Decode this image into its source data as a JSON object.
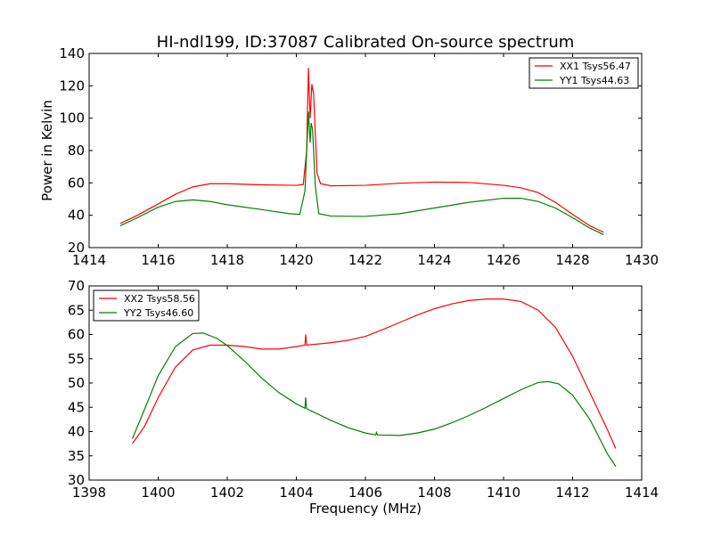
{
  "chart_data": [
    {
      "type": "line",
      "title": "HI-ndl199, ID:37087 Calibrated On-source spectrum",
      "xlabel": "",
      "ylabel": "Power in Kelvin",
      "xlim": [
        1414,
        1430
      ],
      "ylim": [
        20,
        140
      ],
      "xticks": [
        "1414",
        "1416",
        "1418",
        "1420",
        "1422",
        "1424",
        "1426",
        "1428",
        "1430"
      ],
      "yticks": [
        "20",
        "40",
        "60",
        "80",
        "100",
        "120",
        "140"
      ],
      "grid": false,
      "legend_position": "top-right",
      "series": [
        {
          "name": "XX1 Tsys56.47",
          "color": "#ff0000",
          "points": [
            [
              1414.9,
              35
            ],
            [
              1415.4,
              40
            ],
            [
              1416.0,
              47
            ],
            [
              1416.5,
              53
            ],
            [
              1417.0,
              57.5
            ],
            [
              1417.5,
              59.5
            ],
            [
              1418.0,
              59.5
            ],
            [
              1419.0,
              58.8
            ],
            [
              1420.0,
              58.5
            ],
            [
              1420.2,
              59
            ],
            [
              1420.3,
              80
            ],
            [
              1420.35,
              131
            ],
            [
              1420.4,
              100
            ],
            [
              1420.45,
              121
            ],
            [
              1420.5,
              115
            ],
            [
              1420.55,
              90
            ],
            [
              1420.6,
              66
            ],
            [
              1420.7,
              59.5
            ],
            [
              1421.0,
              58.2
            ],
            [
              1422.0,
              58.5
            ],
            [
              1423.0,
              59.8
            ],
            [
              1424.0,
              60.5
            ],
            [
              1425.0,
              60.3
            ],
            [
              1426.0,
              58.5
            ],
            [
              1426.5,
              57
            ],
            [
              1427.0,
              54
            ],
            [
              1427.5,
              48
            ],
            [
              1428.0,
              40.5
            ],
            [
              1428.5,
              33.5
            ],
            [
              1428.9,
              29.5
            ]
          ]
        },
        {
          "name": "YY1 Tsys44.63",
          "color": "#008000",
          "points": [
            [
              1414.9,
              33.5
            ],
            [
              1415.4,
              38.5
            ],
            [
              1416.0,
              45
            ],
            [
              1416.5,
              48.5
            ],
            [
              1417.0,
              49.5
            ],
            [
              1417.5,
              48.5
            ],
            [
              1418.0,
              46.5
            ],
            [
              1419.0,
              43.5
            ],
            [
              1419.8,
              41
            ],
            [
              1420.1,
              40.5
            ],
            [
              1420.25,
              55
            ],
            [
              1420.35,
              104
            ],
            [
              1420.4,
              85
            ],
            [
              1420.43,
              97
            ],
            [
              1420.47,
              93
            ],
            [
              1420.55,
              58
            ],
            [
              1420.65,
              41
            ],
            [
              1421.0,
              39.5
            ],
            [
              1422.0,
              39.3
            ],
            [
              1423.0,
              41
            ],
            [
              1424.0,
              44.5
            ],
            [
              1425.0,
              48
            ],
            [
              1426.0,
              50.5
            ],
            [
              1426.5,
              50.5
            ],
            [
              1427.0,
              48.5
            ],
            [
              1427.5,
              44.5
            ],
            [
              1428.0,
              38.5
            ],
            [
              1428.5,
              32
            ],
            [
              1428.9,
              28
            ]
          ]
        }
      ]
    },
    {
      "type": "line",
      "title": "",
      "xlabel": "Frequency (MHz)",
      "ylabel": "",
      "xlim": [
        1398,
        1414
      ],
      "ylim": [
        30,
        70
      ],
      "xticks": [
        "1398",
        "1400",
        "1402",
        "1404",
        "1406",
        "1408",
        "1410",
        "1412",
        "1414"
      ],
      "yticks": [
        "30",
        "35",
        "40",
        "45",
        "50",
        "55",
        "60",
        "65",
        "70"
      ],
      "grid": false,
      "legend_position": "top-left",
      "series": [
        {
          "name": "XX2 Tsys58.56",
          "color": "#ff0000",
          "points": [
            [
              1399.25,
              37.5
            ],
            [
              1399.6,
              41
            ],
            [
              1400.0,
              47
            ],
            [
              1400.5,
              53.3
            ],
            [
              1401.0,
              56.8
            ],
            [
              1401.5,
              57.8
            ],
            [
              1402.0,
              57.8
            ],
            [
              1402.5,
              57.5
            ],
            [
              1403.0,
              57.0
            ],
            [
              1403.5,
              57.0
            ],
            [
              1404.0,
              57.5
            ],
            [
              1404.25,
              57.8
            ],
            [
              1404.27,
              60.0
            ],
            [
              1404.3,
              57.8
            ],
            [
              1405.0,
              58.3
            ],
            [
              1405.5,
              58.8
            ],
            [
              1406.0,
              59.6
            ],
            [
              1406.5,
              61.0
            ],
            [
              1407.0,
              62.5
            ],
            [
              1407.5,
              64.0
            ],
            [
              1408.0,
              65.3
            ],
            [
              1408.5,
              66.3
            ],
            [
              1409.0,
              67.0
            ],
            [
              1409.5,
              67.3
            ],
            [
              1410.0,
              67.3
            ],
            [
              1410.5,
              66.8
            ],
            [
              1411.0,
              65.0
            ],
            [
              1411.5,
              61.5
            ],
            [
              1412.0,
              55.5
            ],
            [
              1412.5,
              48.0
            ],
            [
              1413.0,
              40.5
            ],
            [
              1413.25,
              36.5
            ]
          ]
        },
        {
          "name": "YY2 Tsys46.60",
          "color": "#008000",
          "points": [
            [
              1399.25,
              38.5
            ],
            [
              1399.6,
              44.5
            ],
            [
              1400.0,
              51.5
            ],
            [
              1400.5,
              57.5
            ],
            [
              1401.0,
              60.2
            ],
            [
              1401.3,
              60.3
            ],
            [
              1401.7,
              59.2
            ],
            [
              1402.0,
              57.7
            ],
            [
              1402.5,
              54.5
            ],
            [
              1403.0,
              51.0
            ],
            [
              1403.5,
              48.0
            ],
            [
              1404.0,
              45.7
            ],
            [
              1404.25,
              44.8
            ],
            [
              1404.27,
              47.0
            ],
            [
              1404.3,
              44.7
            ],
            [
              1405.0,
              42.3
            ],
            [
              1405.5,
              40.8
            ],
            [
              1406.0,
              39.7
            ],
            [
              1406.3,
              39.3
            ],
            [
              1406.32,
              39.8
            ],
            [
              1406.35,
              39.3
            ],
            [
              1407.0,
              39.2
            ],
            [
              1407.5,
              39.7
            ],
            [
              1408.0,
              40.5
            ],
            [
              1408.5,
              41.8
            ],
            [
              1409.0,
              43.3
            ],
            [
              1409.5,
              45.0
            ],
            [
              1410.0,
              46.8
            ],
            [
              1410.5,
              48.6
            ],
            [
              1411.0,
              50.1
            ],
            [
              1411.3,
              50.3
            ],
            [
              1411.6,
              49.8
            ],
            [
              1412.0,
              47.5
            ],
            [
              1412.5,
              42.5
            ],
            [
              1413.0,
              35.5
            ],
            [
              1413.25,
              32.8
            ]
          ]
        }
      ]
    }
  ]
}
